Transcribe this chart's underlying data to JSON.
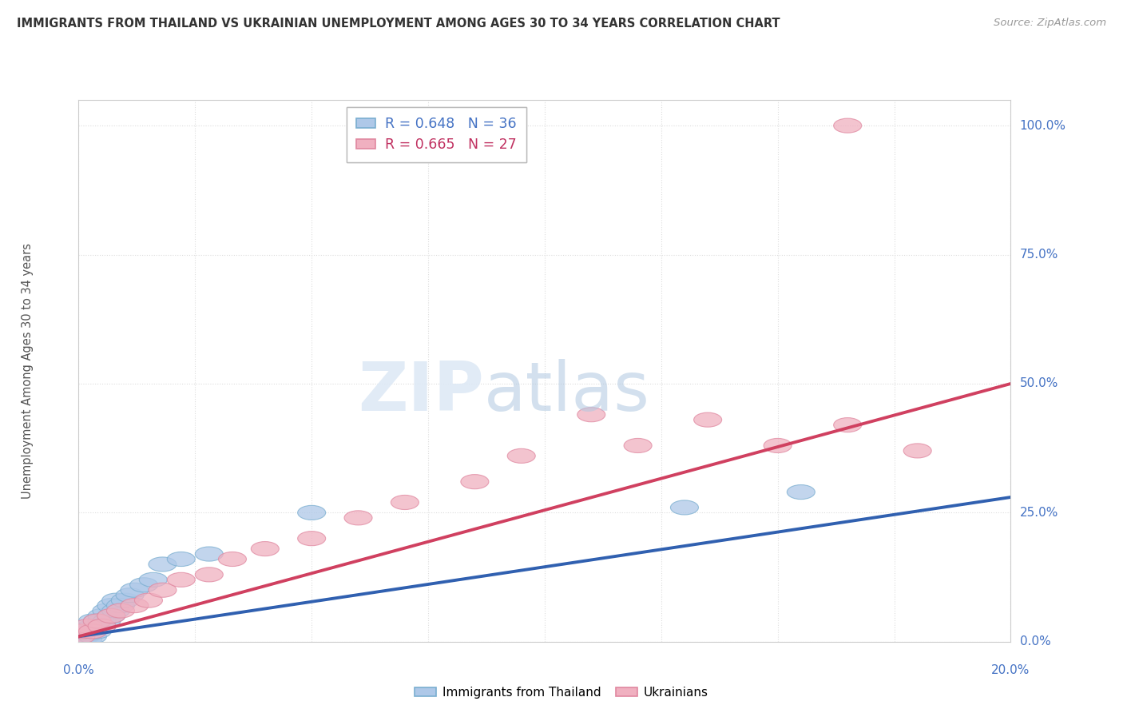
{
  "title": "IMMIGRANTS FROM THAILAND VS UKRAINIAN UNEMPLOYMENT AMONG AGES 30 TO 34 YEARS CORRELATION CHART",
  "source": "Source: ZipAtlas.com",
  "ylabel_label": "Unemployment Among Ages 30 to 34 years",
  "legend_entry1": "R = 0.648   N = 36",
  "legend_entry2": "R = 0.665   N = 27",
  "legend_label1": "Immigrants from Thailand",
  "legend_label2": "Ukrainians",
  "blue_face": "#aec8e8",
  "blue_edge": "#7aaed0",
  "pink_face": "#f0b0c0",
  "pink_edge": "#e088a0",
  "blue_line_color": "#3060b0",
  "pink_line_color": "#d04060",
  "blue_scatter_x": [
    0.0005,
    0.001,
    0.001,
    0.0015,
    0.002,
    0.002,
    0.002,
    0.0025,
    0.003,
    0.003,
    0.003,
    0.003,
    0.004,
    0.004,
    0.004,
    0.005,
    0.005,
    0.005,
    0.006,
    0.006,
    0.007,
    0.007,
    0.008,
    0.008,
    0.009,
    0.01,
    0.011,
    0.012,
    0.014,
    0.016,
    0.018,
    0.022,
    0.028,
    0.05,
    0.13,
    0.155
  ],
  "blue_scatter_y": [
    0.005,
    0.01,
    0.015,
    0.01,
    0.005,
    0.015,
    0.025,
    0.02,
    0.01,
    0.02,
    0.03,
    0.04,
    0.02,
    0.03,
    0.04,
    0.03,
    0.04,
    0.05,
    0.04,
    0.06,
    0.05,
    0.07,
    0.06,
    0.08,
    0.07,
    0.08,
    0.09,
    0.1,
    0.11,
    0.12,
    0.15,
    0.16,
    0.17,
    0.25,
    0.26,
    0.29
  ],
  "pink_scatter_x": [
    0.0005,
    0.001,
    0.002,
    0.003,
    0.004,
    0.005,
    0.007,
    0.009,
    0.012,
    0.015,
    0.018,
    0.022,
    0.028,
    0.033,
    0.04,
    0.05,
    0.06,
    0.07,
    0.085,
    0.095,
    0.11,
    0.12,
    0.135,
    0.15,
    0.165,
    0.18,
    0.165
  ],
  "pink_scatter_y": [
    0.01,
    0.02,
    0.03,
    0.02,
    0.04,
    0.03,
    0.05,
    0.06,
    0.07,
    0.08,
    0.1,
    0.12,
    0.13,
    0.16,
    0.18,
    0.2,
    0.24,
    0.27,
    0.31,
    0.36,
    0.44,
    0.38,
    0.43,
    0.38,
    0.42,
    0.37,
    1.0
  ],
  "blue_line_x": [
    0.0,
    0.2
  ],
  "blue_line_y": [
    0.01,
    0.28
  ],
  "pink_line_x": [
    0.0,
    0.2
  ],
  "pink_line_y": [
    0.01,
    0.5
  ],
  "xmin": 0.0,
  "xmax": 0.2,
  "ymin": 0.0,
  "ymax": 1.05,
  "ytick_positions": [
    0.0,
    0.25,
    0.5,
    0.75,
    1.0
  ],
  "ytick_labels": [
    "0.0%",
    "25.0%",
    "50.0%",
    "75.0%",
    "100.0%"
  ],
  "xtick_left_label": "0.0%",
  "xtick_right_label": "20.0%",
  "grid_color": "#dddddd",
  "spine_color": "#cccccc"
}
